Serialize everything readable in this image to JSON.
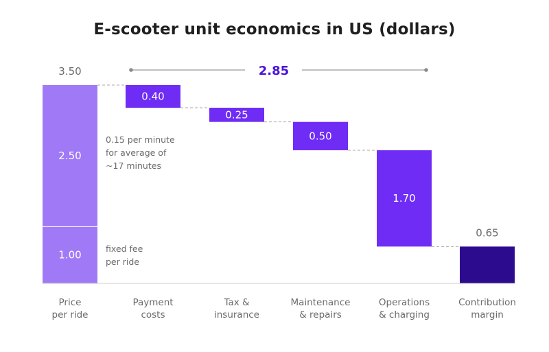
{
  "title": "E-scooter unit economics in US (dollars)",
  "colors": {
    "price_segment": "#a07af6",
    "cost_bar": "#6f2cf5",
    "margin_bar": "#2c0b8f",
    "total_label": "#4a14d8",
    "text_dark": "#3a3a3a",
    "text_muted": "#6b6b6b",
    "connector": "#aaaaaa"
  },
  "chart_data": {
    "type": "waterfall",
    "title": "E-scooter unit economics in US (dollars)",
    "ylim": [
      0,
      3.5
    ],
    "grid": false,
    "legend": "none",
    "categories": [
      "Price\nper ride",
      "Payment\ncosts",
      "Tax &\ninsurance",
      "Maintenance\n& repairs",
      "Operations\n& charging",
      "Contribution\nmargin"
    ],
    "price": {
      "total": 3.5,
      "total_label": "3.50",
      "segments": [
        {
          "value": 1.0,
          "label": "1.00",
          "note": "fixed fee\nper ride"
        },
        {
          "value": 2.5,
          "label": "2.50",
          "note": "0.15 per minute\nfor average of\n~17 minutes"
        }
      ]
    },
    "costs": [
      {
        "category": "Payment\ncosts",
        "value": 0.4,
        "label": "0.40"
      },
      {
        "category": "Tax &\ninsurance",
        "value": 0.25,
        "label": "0.25"
      },
      {
        "category": "Maintenance\n& repairs",
        "value": 0.5,
        "label": "0.50"
      },
      {
        "category": "Operations\n& charging",
        "value": 1.7,
        "label": "1.70"
      }
    ],
    "margin": {
      "value": 0.65,
      "label": "0.65"
    },
    "total_costs": {
      "value": 2.85,
      "label": "2.85"
    }
  }
}
